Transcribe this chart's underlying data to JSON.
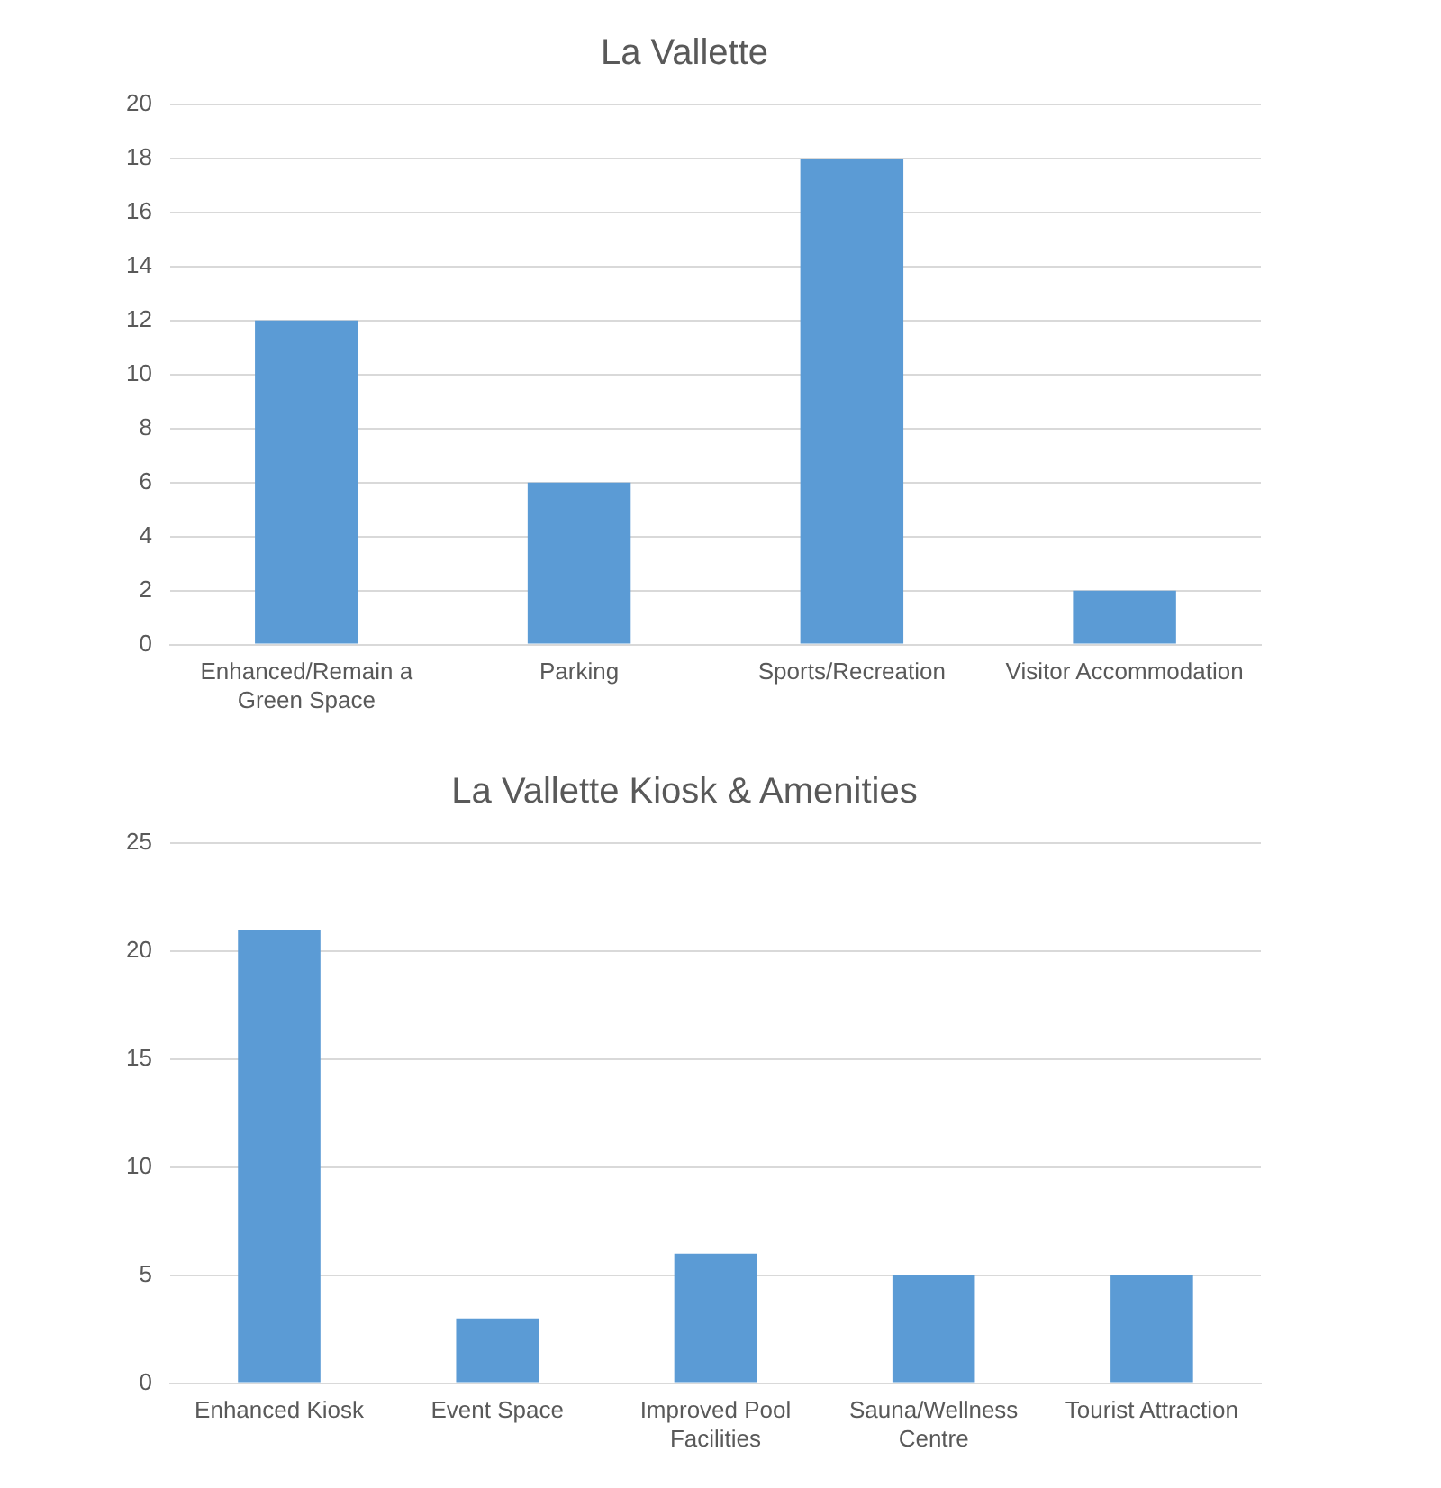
{
  "chart_data": [
    {
      "type": "bar",
      "title": "La Vallette",
      "categories": [
        "Enhanced/Remain a Green Space",
        "Parking",
        "Sports/Recreation",
        "Visitor Accommodation"
      ],
      "values": [
        12,
        6,
        18,
        2
      ],
      "color": "#5b9bd5",
      "ylim": [
        0,
        20
      ],
      "yticks": [
        0,
        2,
        4,
        6,
        8,
        10,
        12,
        14,
        16,
        18,
        20
      ],
      "grid": "y",
      "legend": false
    },
    {
      "type": "bar",
      "title": "La Vallette Kiosk & Amenities",
      "categories": [
        "Enhanced Kiosk",
        "Event Space",
        "Improved Pool Facilities",
        "Sauna/Wellness Centre",
        "Tourist Attraction"
      ],
      "values": [
        21,
        3,
        6,
        5,
        5
      ],
      "color": "#5b9bd5",
      "ylim": [
        0,
        25
      ],
      "yticks": [
        0,
        5,
        10,
        15,
        20,
        25
      ],
      "grid": "y",
      "legend": false
    }
  ]
}
